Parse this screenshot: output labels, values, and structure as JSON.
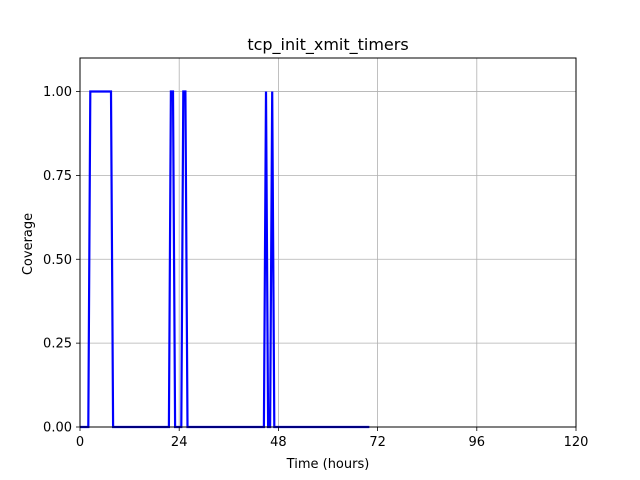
{
  "chart_data": {
    "type": "line",
    "title": "tcp_init_xmit_timers",
    "xlabel": "Time (hours)",
    "ylabel": "Coverage",
    "xlim": [
      0,
      120
    ],
    "ylim": [
      0,
      1.1
    ],
    "x_ticks": [
      0,
      24,
      48,
      72,
      96,
      120
    ],
    "x_tick_labels": [
      "0",
      "24",
      "48",
      "72",
      "96",
      "120"
    ],
    "y_ticks": [
      0.0,
      0.25,
      0.5,
      0.75,
      1.0
    ],
    "y_tick_labels": [
      "0.00",
      "0.25",
      "0.50",
      "0.75",
      "1.00"
    ],
    "grid": true,
    "series": [
      {
        "color": "#0000ff",
        "x": [
          0,
          2,
          2.5,
          7.5,
          8,
          21.5,
          22,
          22.5,
          23,
          24.5,
          25,
          25.5,
          26,
          44.5,
          45,
          45.5,
          46,
          46.5,
          47,
          70
        ],
        "y": [
          0,
          0,
          1,
          1,
          0,
          0,
          1,
          1,
          0,
          0,
          1,
          1,
          0,
          0,
          1,
          0,
          0,
          1,
          0,
          0
        ]
      }
    ]
  }
}
